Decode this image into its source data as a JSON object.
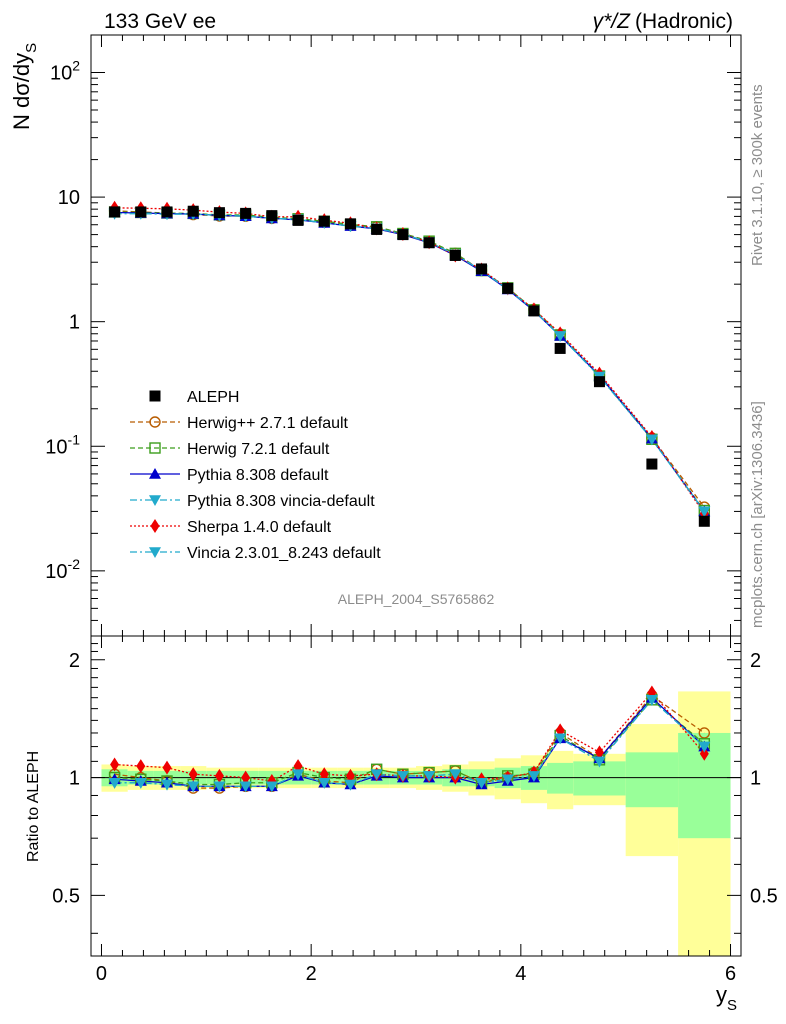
{
  "header": {
    "left": "133 GeV ee",
    "right_symbol": "γ*/Z",
    "right_text": "(Hadronic)"
  },
  "side": {
    "rivet": "Rivet 3.1.10, ≥ 300k events",
    "mcplots": "mcplots.cern.ch [arXiv:1306.3436]"
  },
  "analysis_id": "ALEPH_2004_S5765862",
  "chart_data": {
    "type": "scatter",
    "title": "133 GeV ee  γ*/Z (Hadronic)",
    "xlabel": "y_S",
    "ylabel": "N dσ/dy_S",
    "ratio_ylabel": "Ratio to ALEPH",
    "xlim": [
      -0.1,
      6.1
    ],
    "ylim": [
      0.003,
      200
    ],
    "ratio_ylim": [
      0.35,
      2.3
    ],
    "yscale": "log",
    "x_ticks": [
      "0",
      "2",
      "4",
      "6"
    ],
    "y_ticks": [
      "10^-2",
      "10^-1",
      "1",
      "10",
      "10^2"
    ],
    "ratio_ticks": [
      "0.5",
      "1",
      "2"
    ],
    "x": [
      0.125,
      0.375,
      0.625,
      0.875,
      1.125,
      1.375,
      1.625,
      1.875,
      2.125,
      2.375,
      2.625,
      2.875,
      3.125,
      3.375,
      3.625,
      3.875,
      4.125,
      4.375,
      4.75,
      5.25,
      5.75
    ],
    "bin_edges": [
      0,
      0.25,
      0.5,
      0.75,
      1.0,
      1.25,
      1.5,
      1.75,
      2.0,
      2.25,
      2.5,
      2.75,
      3.0,
      3.25,
      3.5,
      3.75,
      4.0,
      4.25,
      4.5,
      5.0,
      5.5,
      6.0
    ],
    "data": {
      "name": "ALEPH",
      "values": [
        7.6,
        7.6,
        7.6,
        7.7,
        7.5,
        7.4,
        7.1,
        6.5,
        6.4,
        6.1,
        5.5,
        5.0,
        4.3,
        3.4,
        2.65,
        1.85,
        1.22,
        0.61,
        0.33,
        0.072,
        0.025
      ]
    },
    "bands": {
      "stat_rel": [
        0.05,
        0.04,
        0.04,
        0.04,
        0.04,
        0.04,
        0.04,
        0.04,
        0.04,
        0.04,
        0.04,
        0.04,
        0.04,
        0.05,
        0.05,
        0.06,
        0.07,
        0.09,
        0.1,
        0.16,
        0.3
      ],
      "total_rel": [
        0.08,
        0.07,
        0.07,
        0.07,
        0.06,
        0.06,
        0.06,
        0.06,
        0.06,
        0.06,
        0.06,
        0.06,
        0.07,
        0.08,
        0.1,
        0.12,
        0.14,
        0.17,
        0.15,
        0.37,
        0.66
      ],
      "stat_color": "#99ff99",
      "total_color": "#ffff99"
    },
    "series": [
      {
        "name": "Herwig++ 2.7.1 default",
        "color": "#b85c00",
        "marker": "circle-open",
        "dash": "5,3",
        "ratio": [
          1.02,
          1.0,
          0.98,
          0.94,
          0.94,
          0.95,
          0.95,
          1.02,
          0.98,
          0.97,
          1.05,
          1.02,
          1.03,
          1.04,
          0.97,
          1.0,
          1.03,
          1.3,
          1.12,
          1.62,
          1.3
        ]
      },
      {
        "name": "Herwig 7.2.1 default",
        "color": "#3c9e1c",
        "marker": "square-open",
        "dash": "5,3",
        "ratio": [
          1.0,
          0.99,
          0.98,
          0.96,
          0.96,
          0.97,
          0.97,
          1.03,
          1.0,
          0.99,
          1.05,
          1.02,
          1.03,
          1.04,
          0.97,
          1.01,
          1.02,
          1.28,
          1.11,
          1.58,
          1.22
        ]
      },
      {
        "name": "Pythia 8.308 default",
        "color": "#0000cc",
        "marker": "triangle-up",
        "dash": "",
        "ratio": [
          0.99,
          0.98,
          0.97,
          0.95,
          0.95,
          0.95,
          0.95,
          1.01,
          0.97,
          0.96,
          1.01,
          1.0,
          1.0,
          1.0,
          0.96,
          0.98,
          1.0,
          1.26,
          1.12,
          1.6,
          1.2
        ]
      },
      {
        "name": "Pythia 8.308 vincia-default",
        "color": "#22aacc",
        "marker": "triangle-down",
        "dash": "7,3,2,3",
        "ratio": [
          0.97,
          0.97,
          0.96,
          0.95,
          0.95,
          0.95,
          0.95,
          1.02,
          0.97,
          0.96,
          1.02,
          1.01,
          1.01,
          1.02,
          0.97,
          0.99,
          1.01,
          1.26,
          1.1,
          1.58,
          1.2
        ]
      },
      {
        "name": "Sherpa 1.4.0 default",
        "color": "#ee0000",
        "marker": "diamond",
        "dash": "2,2",
        "ratio": [
          1.08,
          1.07,
          1.06,
          1.02,
          1.01,
          1.0,
          0.98,
          1.07,
          1.02,
          1.01,
          1.02,
          1.01,
          1.01,
          1.0,
          0.99,
          1.0,
          1.03,
          1.32,
          1.16,
          1.65,
          1.15
        ]
      },
      {
        "name": "Vincia 2.3.01_8.243 default",
        "color": "#22aacc",
        "marker": "triangle-down",
        "dash": "7,3,2,3",
        "ratio": [
          0.97,
          0.97,
          0.96,
          0.95,
          0.95,
          0.95,
          0.95,
          1.02,
          0.97,
          0.96,
          1.02,
          1.01,
          1.01,
          1.02,
          0.97,
          0.99,
          1.01,
          1.26,
          1.1,
          1.58,
          1.2
        ]
      }
    ],
    "legend": "left-middle"
  }
}
